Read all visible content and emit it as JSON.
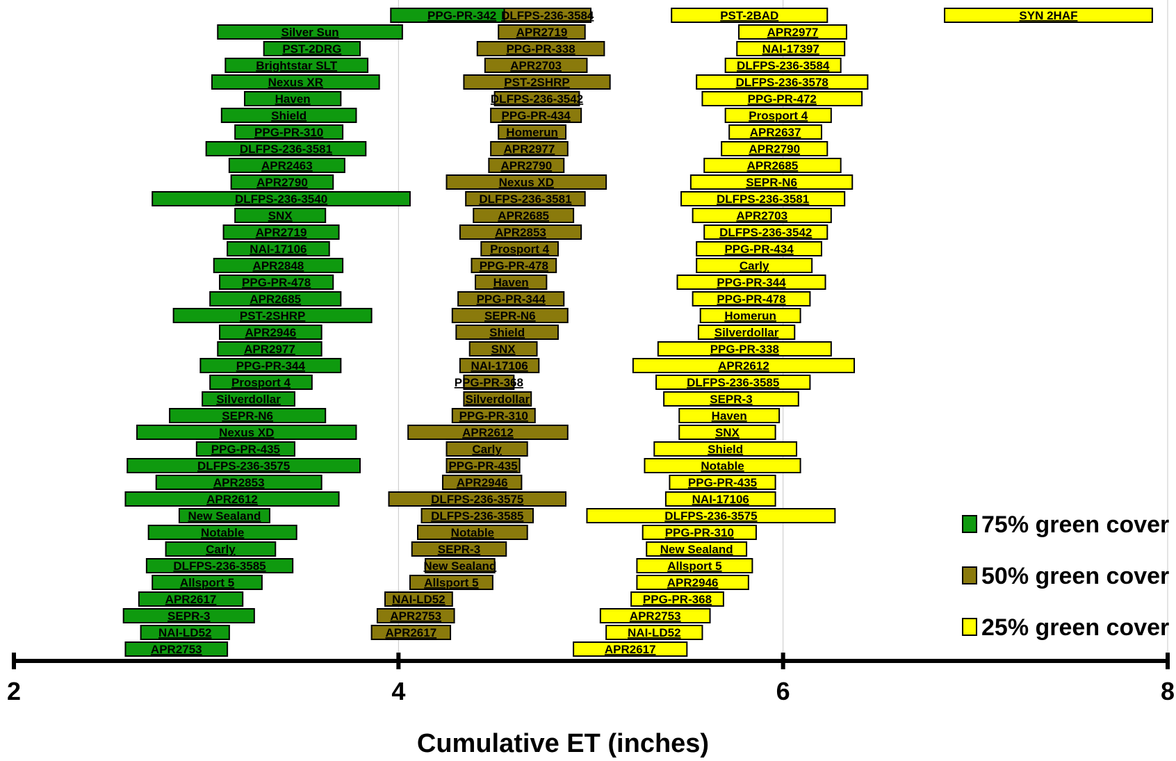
{
  "chart_data": {
    "type": "bar",
    "orientation": "horizontal-range",
    "title": "",
    "xlabel": "Cumulative ET (inches)",
    "ylabel": "",
    "xlim": [
      2,
      8
    ],
    "x_ticks": [
      "2",
      "4",
      "6",
      "8"
    ],
    "grid": "vertical",
    "legend_position": "bottom-right",
    "series": [
      {
        "name": "75% green cover",
        "color": "#0f9a0f",
        "bars": [
          {
            "label": "PPG-PR-342",
            "start": 3.96,
            "end": 4.7
          },
          {
            "label": "Silver Sun",
            "start": 3.06,
            "end": 4.02
          },
          {
            "label": "PST-2DRG",
            "start": 3.3,
            "end": 3.8
          },
          {
            "label": "Brightstar SLT",
            "start": 3.1,
            "end": 3.84
          },
          {
            "label": "Nexus XR",
            "start": 3.03,
            "end": 3.9
          },
          {
            "label": "Haven",
            "start": 3.2,
            "end": 3.7
          },
          {
            "label": "Shield",
            "start": 3.08,
            "end": 3.78
          },
          {
            "label": "PPG-PR-310",
            "start": 3.15,
            "end": 3.71
          },
          {
            "label": "DLFPS-236-3581",
            "start": 3.0,
            "end": 3.83
          },
          {
            "label": "APR2463",
            "start": 3.12,
            "end": 3.72
          },
          {
            "label": "APR2790",
            "start": 3.13,
            "end": 3.66
          },
          {
            "label": "DLFPS-236-3540",
            "start": 2.72,
            "end": 4.06
          },
          {
            "label": "SNX",
            "start": 3.15,
            "end": 3.62
          },
          {
            "label": "APR2719",
            "start": 3.09,
            "end": 3.69
          },
          {
            "label": "NAI-17106",
            "start": 3.11,
            "end": 3.64
          },
          {
            "label": "APR2848",
            "start": 3.04,
            "end": 3.71
          },
          {
            "label": "PPG-PR-478",
            "start": 3.07,
            "end": 3.66
          },
          {
            "label": "APR2685",
            "start": 3.02,
            "end": 3.7
          },
          {
            "label": "PST-2SHRP",
            "start": 2.83,
            "end": 3.86
          },
          {
            "label": "APR2946",
            "start": 3.07,
            "end": 3.6
          },
          {
            "label": "APR2977",
            "start": 3.06,
            "end": 3.6
          },
          {
            "label": "PPG-PR-344",
            "start": 2.97,
            "end": 3.7
          },
          {
            "label": "Prosport 4",
            "start": 3.02,
            "end": 3.55
          },
          {
            "label": "Silverdollar",
            "start": 2.98,
            "end": 3.46
          },
          {
            "label": "SEPR-N6",
            "start": 2.81,
            "end": 3.62
          },
          {
            "label": "Nexus XD",
            "start": 2.64,
            "end": 3.78
          },
          {
            "label": "PPG-PR-435",
            "start": 2.95,
            "end": 3.46
          },
          {
            "label": "DLFPS-236-3575",
            "start": 2.59,
            "end": 3.8
          },
          {
            "label": "APR2853",
            "start": 2.74,
            "end": 3.6
          },
          {
            "label": "APR2612",
            "start": 2.58,
            "end": 3.69
          },
          {
            "label": "New Sealand",
            "start": 2.86,
            "end": 3.33
          },
          {
            "label": "Notable",
            "start": 2.7,
            "end": 3.47
          },
          {
            "label": "Carly",
            "start": 2.79,
            "end": 3.36
          },
          {
            "label": "DLFPS-236-3585",
            "start": 2.69,
            "end": 3.45
          },
          {
            "label": "Allsport 5",
            "start": 2.72,
            "end": 3.29
          },
          {
            "label": "APR2617",
            "start": 2.65,
            "end": 3.19
          },
          {
            "label": "SEPR-3",
            "start": 2.57,
            "end": 3.25
          },
          {
            "label": "NAI-LD52",
            "start": 2.66,
            "end": 3.12
          },
          {
            "label": "APR2753",
            "start": 2.58,
            "end": 3.11
          }
        ]
      },
      {
        "name": "50% green cover",
        "color": "#8a7a0c",
        "bars": [
          {
            "label": "DLFPS-236-3584",
            "start": 4.55,
            "end": 5.0
          },
          {
            "label": "APR2719",
            "start": 4.52,
            "end": 4.97
          },
          {
            "label": "PPG-PR-338",
            "start": 4.41,
            "end": 5.07
          },
          {
            "label": "APR2703",
            "start": 4.45,
            "end": 4.98
          },
          {
            "label": "PST-2SHRP",
            "start": 4.34,
            "end": 5.1
          },
          {
            "label": "DLFPS-236-3542",
            "start": 4.5,
            "end": 4.94
          },
          {
            "label": "PPG-PR-434",
            "start": 4.48,
            "end": 4.95
          },
          {
            "label": "Homerun",
            "start": 4.52,
            "end": 4.87
          },
          {
            "label": "APR2977",
            "start": 4.48,
            "end": 4.88
          },
          {
            "label": "APR2790",
            "start": 4.47,
            "end": 4.86
          },
          {
            "label": "Nexus XD",
            "start": 4.25,
            "end": 5.08
          },
          {
            "label": "DLFPS-236-3581",
            "start": 4.35,
            "end": 4.97
          },
          {
            "label": "APR2685",
            "start": 4.39,
            "end": 4.91
          },
          {
            "label": "APR2853",
            "start": 4.32,
            "end": 4.95
          },
          {
            "label": "Prosport 4",
            "start": 4.43,
            "end": 4.83
          },
          {
            "label": "PPG-PR-478",
            "start": 4.38,
            "end": 4.82
          },
          {
            "label": "Haven",
            "start": 4.4,
            "end": 4.77
          },
          {
            "label": "PPG-PR-344",
            "start": 4.31,
            "end": 4.86
          },
          {
            "label": "SEPR-N6",
            "start": 4.28,
            "end": 4.88
          },
          {
            "label": "Shield",
            "start": 4.3,
            "end": 4.83
          },
          {
            "label": "SNX",
            "start": 4.37,
            "end": 4.72
          },
          {
            "label": "NAI-17106",
            "start": 4.32,
            "end": 4.73
          },
          {
            "label": "PPG-PR-368",
            "start": 4.34,
            "end": 4.6
          },
          {
            "label": "Silverdollar",
            "start": 4.34,
            "end": 4.69
          },
          {
            "label": "PPG-PR-310",
            "start": 4.28,
            "end": 4.71
          },
          {
            "label": "APR2612",
            "start": 4.05,
            "end": 4.88
          },
          {
            "label": "Carly",
            "start": 4.25,
            "end": 4.67
          },
          {
            "label": "PPG-PR-435",
            "start": 4.25,
            "end": 4.63
          },
          {
            "label": "APR2946",
            "start": 4.23,
            "end": 4.64
          },
          {
            "label": "DLFPS-236-3575",
            "start": 3.95,
            "end": 4.87
          },
          {
            "label": "DLFPS-236-3585",
            "start": 4.12,
            "end": 4.7
          },
          {
            "label": "Notable",
            "start": 4.1,
            "end": 4.67
          },
          {
            "label": "SEPR-3",
            "start": 4.07,
            "end": 4.56
          },
          {
            "label": "New Sealand",
            "start": 4.14,
            "end": 4.5
          },
          {
            "label": "Allsport 5",
            "start": 4.06,
            "end": 4.49
          },
          {
            "label": "NAI-LD52",
            "start": 3.93,
            "end": 4.28
          },
          {
            "label": "APR2753",
            "start": 3.89,
            "end": 4.29
          },
          {
            "label": "APR2617",
            "start": 3.86,
            "end": 4.27
          }
        ]
      },
      {
        "name": "25% green cover",
        "color": "#ffff00",
        "bars": [
          {
            "label": "PST-2BAD",
            "start": 5.42,
            "end": 6.23
          },
          {
            "label": "SYN 2HAF",
            "start": 6.84,
            "end": 7.92
          },
          {
            "label": "APR2977",
            "start": 5.77,
            "end": 6.33
          },
          {
            "label": "NAI-17397",
            "start": 5.76,
            "end": 6.32
          },
          {
            "label": "DLFPS-236-3584",
            "start": 5.7,
            "end": 6.3
          },
          {
            "label": "DLFPS-236-3578",
            "start": 5.55,
            "end": 6.44
          },
          {
            "label": "PPG-PR-472",
            "start": 5.58,
            "end": 6.41
          },
          {
            "label": "Prosport 4",
            "start": 5.7,
            "end": 6.25
          },
          {
            "label": "APR2637",
            "start": 5.72,
            "end": 6.2
          },
          {
            "label": "APR2790",
            "start": 5.68,
            "end": 6.23
          },
          {
            "label": "APR2685",
            "start": 5.59,
            "end": 6.3
          },
          {
            "label": "SEPR-N6",
            "start": 5.52,
            "end": 6.36
          },
          {
            "label": "DLFPS-236-3581",
            "start": 5.47,
            "end": 6.32
          },
          {
            "label": "APR2703",
            "start": 5.53,
            "end": 6.25
          },
          {
            "label": "DLFPS-236-3542",
            "start": 5.59,
            "end": 6.23
          },
          {
            "label": "PPG-PR-434",
            "start": 5.55,
            "end": 6.2
          },
          {
            "label": "Carly",
            "start": 5.55,
            "end": 6.15
          },
          {
            "label": "PPG-PR-344",
            "start": 5.45,
            "end": 6.22
          },
          {
            "label": "PPG-PR-478",
            "start": 5.53,
            "end": 6.14
          },
          {
            "label": "Homerun",
            "start": 5.57,
            "end": 6.09
          },
          {
            "label": "Silverdollar",
            "start": 5.56,
            "end": 6.06
          },
          {
            "label": "PPG-PR-338",
            "start": 5.35,
            "end": 6.25
          },
          {
            "label": "APR2612",
            "start": 5.22,
            "end": 6.37
          },
          {
            "label": "DLFPS-236-3585",
            "start": 5.34,
            "end": 6.14
          },
          {
            "label": "SEPR-3",
            "start": 5.38,
            "end": 6.08
          },
          {
            "label": "Haven",
            "start": 5.46,
            "end": 5.98
          },
          {
            "label": "SNX",
            "start": 5.46,
            "end": 5.96
          },
          {
            "label": "Shield",
            "start": 5.33,
            "end": 6.07
          },
          {
            "label": "Notable",
            "start": 5.28,
            "end": 6.09
          },
          {
            "label": "PPG-PR-435",
            "start": 5.41,
            "end": 5.96
          },
          {
            "label": "NAI-17106",
            "start": 5.39,
            "end": 5.96
          },
          {
            "label": "DLFPS-236-3575",
            "start": 4.98,
            "end": 6.27
          },
          {
            "label": "PPG-PR-310",
            "start": 5.27,
            "end": 5.86
          },
          {
            "label": "New Sealand",
            "start": 5.29,
            "end": 5.81
          },
          {
            "label": "Allsport 5",
            "start": 5.24,
            "end": 5.84
          },
          {
            "label": "APR2946",
            "start": 5.24,
            "end": 5.82
          },
          {
            "label": "PPG-PR-368",
            "start": 5.21,
            "end": 5.69
          },
          {
            "label": "APR2753",
            "start": 5.05,
            "end": 5.62
          },
          {
            "label": "NAI-LD52",
            "start": 5.08,
            "end": 5.58
          },
          {
            "label": "APR2617",
            "start": 4.91,
            "end": 5.5
          }
        ]
      }
    ]
  }
}
